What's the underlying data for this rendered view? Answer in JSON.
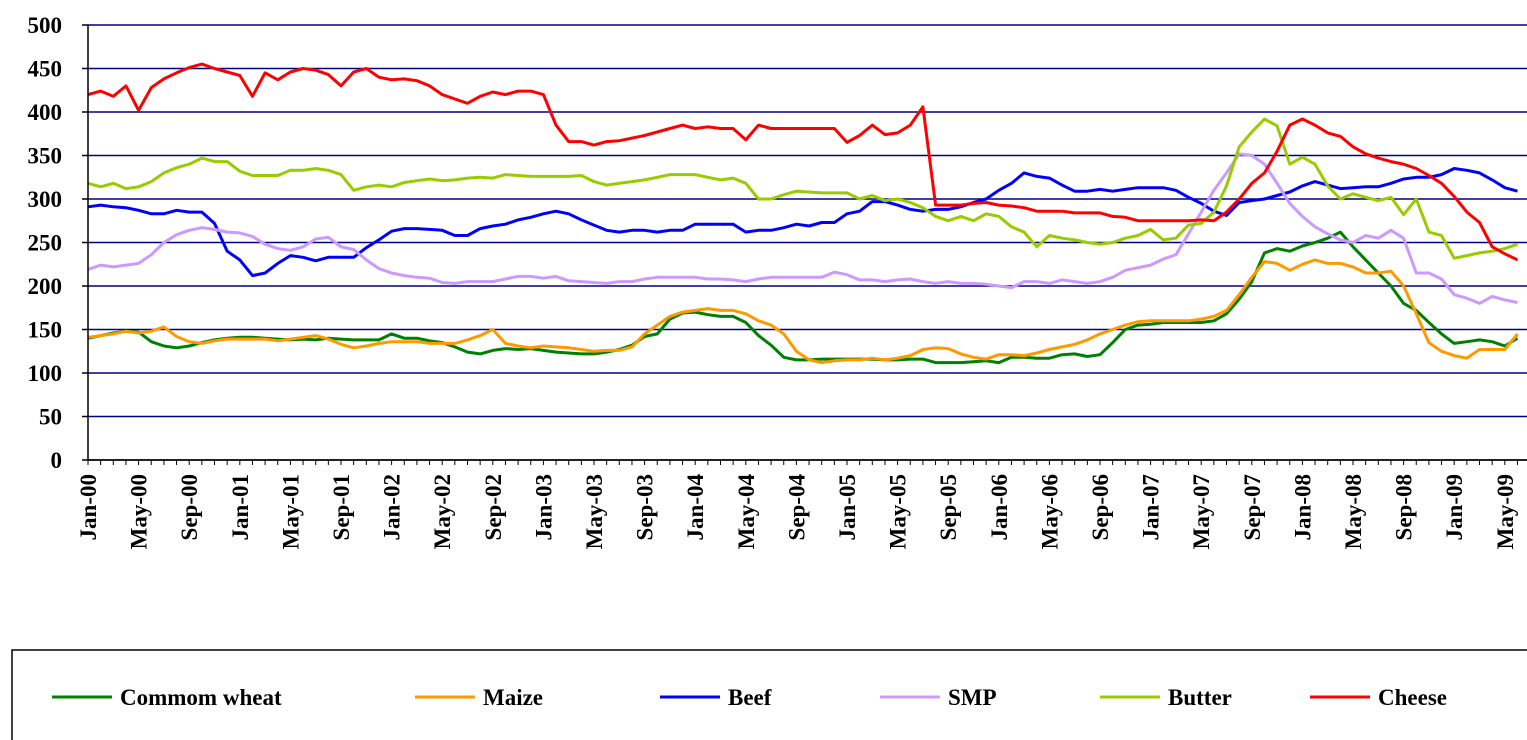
{
  "chart_data": {
    "type": "line",
    "categories": [
      "Jan-00",
      null,
      null,
      null,
      "May-00",
      null,
      null,
      null,
      "Sep-00",
      null,
      null,
      null,
      "Jan-01",
      null,
      null,
      null,
      "May-01",
      null,
      null,
      null,
      "Sep-01",
      null,
      null,
      null,
      "Jan-02",
      null,
      null,
      null,
      "May-02",
      null,
      null,
      null,
      "Sep-02",
      null,
      null,
      null,
      "Jan-03",
      null,
      null,
      null,
      "May-03",
      null,
      null,
      null,
      "Sep-03",
      null,
      null,
      null,
      "Jan-04",
      null,
      null,
      null,
      "May-04",
      null,
      null,
      null,
      "Sep-04",
      null,
      null,
      null,
      "Jan-05",
      null,
      null,
      null,
      "May-05",
      null,
      null,
      null,
      "Sep-05",
      null,
      null,
      null,
      "Jan-06",
      null,
      null,
      null,
      "May-06",
      null,
      null,
      null,
      "Sep-06",
      null,
      null,
      null,
      "Jan-07",
      null,
      null,
      null,
      "May-07",
      null,
      null,
      null,
      "Sep-07",
      null,
      null,
      null,
      "Jan-08",
      null,
      null,
      null,
      "May-08",
      null,
      null,
      null,
      "Sep-08",
      null,
      null,
      null,
      "Jan-09",
      null,
      null,
      null,
      "May-09",
      null
    ],
    "series": [
      {
        "name": "Commom wheat",
        "color": "#008000",
        "values": [
          140,
          143,
          146,
          148,
          147,
          136,
          131,
          129,
          131,
          135,
          138,
          140,
          141,
          141,
          140,
          139,
          138,
          139,
          138,
          140,
          139,
          138,
          138,
          138,
          145,
          140,
          140,
          137,
          135,
          130,
          124,
          122,
          126,
          128,
          127,
          128,
          126,
          124,
          123,
          122,
          122,
          124,
          127,
          132,
          142,
          145,
          162,
          169,
          170,
          167,
          165,
          165,
          158,
          143,
          132,
          118,
          115,
          115,
          116,
          116,
          116,
          116,
          116,
          115,
          115,
          116,
          116,
          112,
          112,
          112,
          113,
          114,
          112,
          118,
          118,
          117,
          117,
          121,
          122,
          119,
          121,
          135,
          150,
          155,
          156,
          158,
          158,
          158,
          158,
          160,
          168,
          185,
          205,
          238,
          243,
          240,
          246,
          250,
          255,
          262,
          245,
          230,
          215,
          200,
          180,
          172,
          158,
          145,
          134,
          136,
          138,
          136,
          131,
          140
        ]
      },
      {
        "name": "Maize",
        "color": "#ff9900",
        "values": [
          141,
          143,
          145,
          148,
          146,
          148,
          153,
          142,
          136,
          134,
          137,
          139,
          139,
          139,
          139,
          137,
          139,
          141,
          143,
          139,
          133,
          129,
          131,
          134,
          136,
          136,
          136,
          134,
          134,
          134,
          138,
          143,
          150,
          134,
          131,
          129,
          131,
          130,
          129,
          127,
          125,
          126,
          126,
          130,
          145,
          155,
          165,
          170,
          172,
          174,
          172,
          172,
          168,
          160,
          155,
          145,
          125,
          115,
          112,
          114,
          115,
          115,
          117,
          115,
          117,
          120,
          127,
          129,
          128,
          122,
          118,
          116,
          121,
          121,
          120,
          123,
          127,
          130,
          133,
          138,
          145,
          150,
          155,
          159,
          160,
          160,
          160,
          160,
          162,
          165,
          172,
          190,
          210,
          228,
          226,
          218,
          225,
          230,
          226,
          226,
          222,
          215,
          215,
          217,
          200,
          168,
          135,
          125,
          120,
          117,
          127,
          127,
          127,
          145
        ]
      },
      {
        "name": "Beef",
        "color": "#0000ff",
        "values": [
          291,
          293,
          291,
          290,
          287,
          283,
          283,
          287,
          285,
          285,
          272,
          240,
          230,
          212,
          215,
          226,
          235,
          233,
          229,
          233,
          233,
          233,
          244,
          253,
          263,
          266,
          266,
          265,
          264,
          258,
          258,
          266,
          269,
          271,
          276,
          279,
          283,
          286,
          283,
          276,
          270,
          264,
          262,
          264,
          264,
          262,
          264,
          264,
          271,
          271,
          271,
          271,
          262,
          264,
          264,
          267,
          271,
          269,
          273,
          273,
          283,
          286,
          297,
          297,
          293,
          288,
          286,
          288,
          288,
          291,
          296,
          300,
          310,
          318,
          330,
          326,
          324,
          316,
          309,
          309,
          311,
          309,
          311,
          313,
          313,
          313,
          310,
          302,
          295,
          286,
          281,
          296,
          298,
          300,
          304,
          308,
          315,
          320,
          316,
          312,
          313,
          314,
          314,
          318,
          323,
          325,
          325,
          328,
          335,
          333,
          330,
          322,
          313,
          309
        ]
      },
      {
        "name": "SMP",
        "color": "#cc99ff",
        "values": [
          219,
          224,
          222,
          224,
          226,
          236,
          250,
          259,
          264,
          267,
          265,
          262,
          261,
          257,
          248,
          243,
          241,
          245,
          254,
          256,
          245,
          242,
          230,
          220,
          215,
          212,
          210,
          209,
          204,
          203,
          205,
          205,
          205,
          208,
          211,
          211,
          209,
          211,
          206,
          205,
          204,
          203,
          205,
          205,
          208,
          210,
          210,
          210,
          210,
          208,
          208,
          207,
          205,
          208,
          210,
          210,
          210,
          210,
          210,
          216,
          213,
          207,
          207,
          205,
          207,
          208,
          205,
          203,
          205,
          203,
          203,
          202,
          200,
          198,
          205,
          205,
          203,
          207,
          205,
          203,
          205,
          210,
          218,
          221,
          224,
          231,
          236,
          260,
          285,
          310,
          330,
          352,
          350,
          340,
          318,
          295,
          280,
          268,
          260,
          253,
          250,
          258,
          255,
          264,
          255,
          215,
          215,
          208,
          190,
          186,
          180,
          188,
          184,
          181
        ]
      },
      {
        "name": "Butter",
        "color": "#99cc00",
        "values": [
          318,
          314,
          318,
          312,
          314,
          320,
          330,
          336,
          340,
          347,
          343,
          343,
          332,
          327,
          327,
          327,
          333,
          333,
          335,
          333,
          328,
          310,
          314,
          316,
          314,
          319,
          321,
          323,
          321,
          322,
          324,
          325,
          324,
          328,
          327,
          326,
          326,
          326,
          326,
          327,
          320,
          316,
          318,
          320,
          322,
          325,
          328,
          328,
          328,
          325,
          322,
          324,
          318,
          300,
          300,
          305,
          309,
          308,
          307,
          307,
          307,
          300,
          304,
          298,
          300,
          296,
          290,
          280,
          275,
          280,
          275,
          283,
          280,
          268,
          262,
          245,
          258,
          255,
          253,
          250,
          248,
          250,
          255,
          258,
          265,
          253,
          255,
          270,
          272,
          285,
          315,
          360,
          377,
          392,
          384,
          340,
          348,
          340,
          315,
          300,
          306,
          302,
          298,
          302,
          282,
          300,
          262,
          258,
          232,
          235,
          238,
          240,
          243,
          248
        ]
      },
      {
        "name": "Cheese",
        "color": "#ff0000",
        "values": [
          420,
          424,
          418,
          430,
          402,
          428,
          438,
          445,
          451,
          455,
          450,
          446,
          442,
          418,
          445,
          437,
          446,
          450,
          448,
          443,
          430,
          446,
          450,
          440,
          437,
          438,
          436,
          430,
          420,
          415,
          410,
          418,
          423,
          420,
          424,
          424,
          420,
          385,
          366,
          366,
          362,
          366,
          367,
          370,
          373,
          377,
          381,
          385,
          381,
          383,
          381,
          381,
          368,
          385,
          381,
          381,
          381,
          381,
          381,
          381,
          365,
          373,
          385,
          374,
          376,
          385,
          406,
          293,
          293,
          293,
          295,
          296,
          293,
          292,
          290,
          286,
          286,
          286,
          284,
          284,
          284,
          280,
          279,
          275,
          275,
          275,
          275,
          275,
          276,
          275,
          285,
          300,
          318,
          330,
          355,
          385,
          392,
          385,
          376,
          372,
          360,
          352,
          347,
          343,
          340,
          335,
          327,
          318,
          303,
          285,
          273,
          245,
          237,
          230
        ]
      }
    ],
    "ylim": [
      0,
      500
    ],
    "yticks": [
      0,
      50,
      100,
      150,
      200,
      250,
      300,
      350,
      400,
      450,
      500
    ],
    "grid": true
  }
}
